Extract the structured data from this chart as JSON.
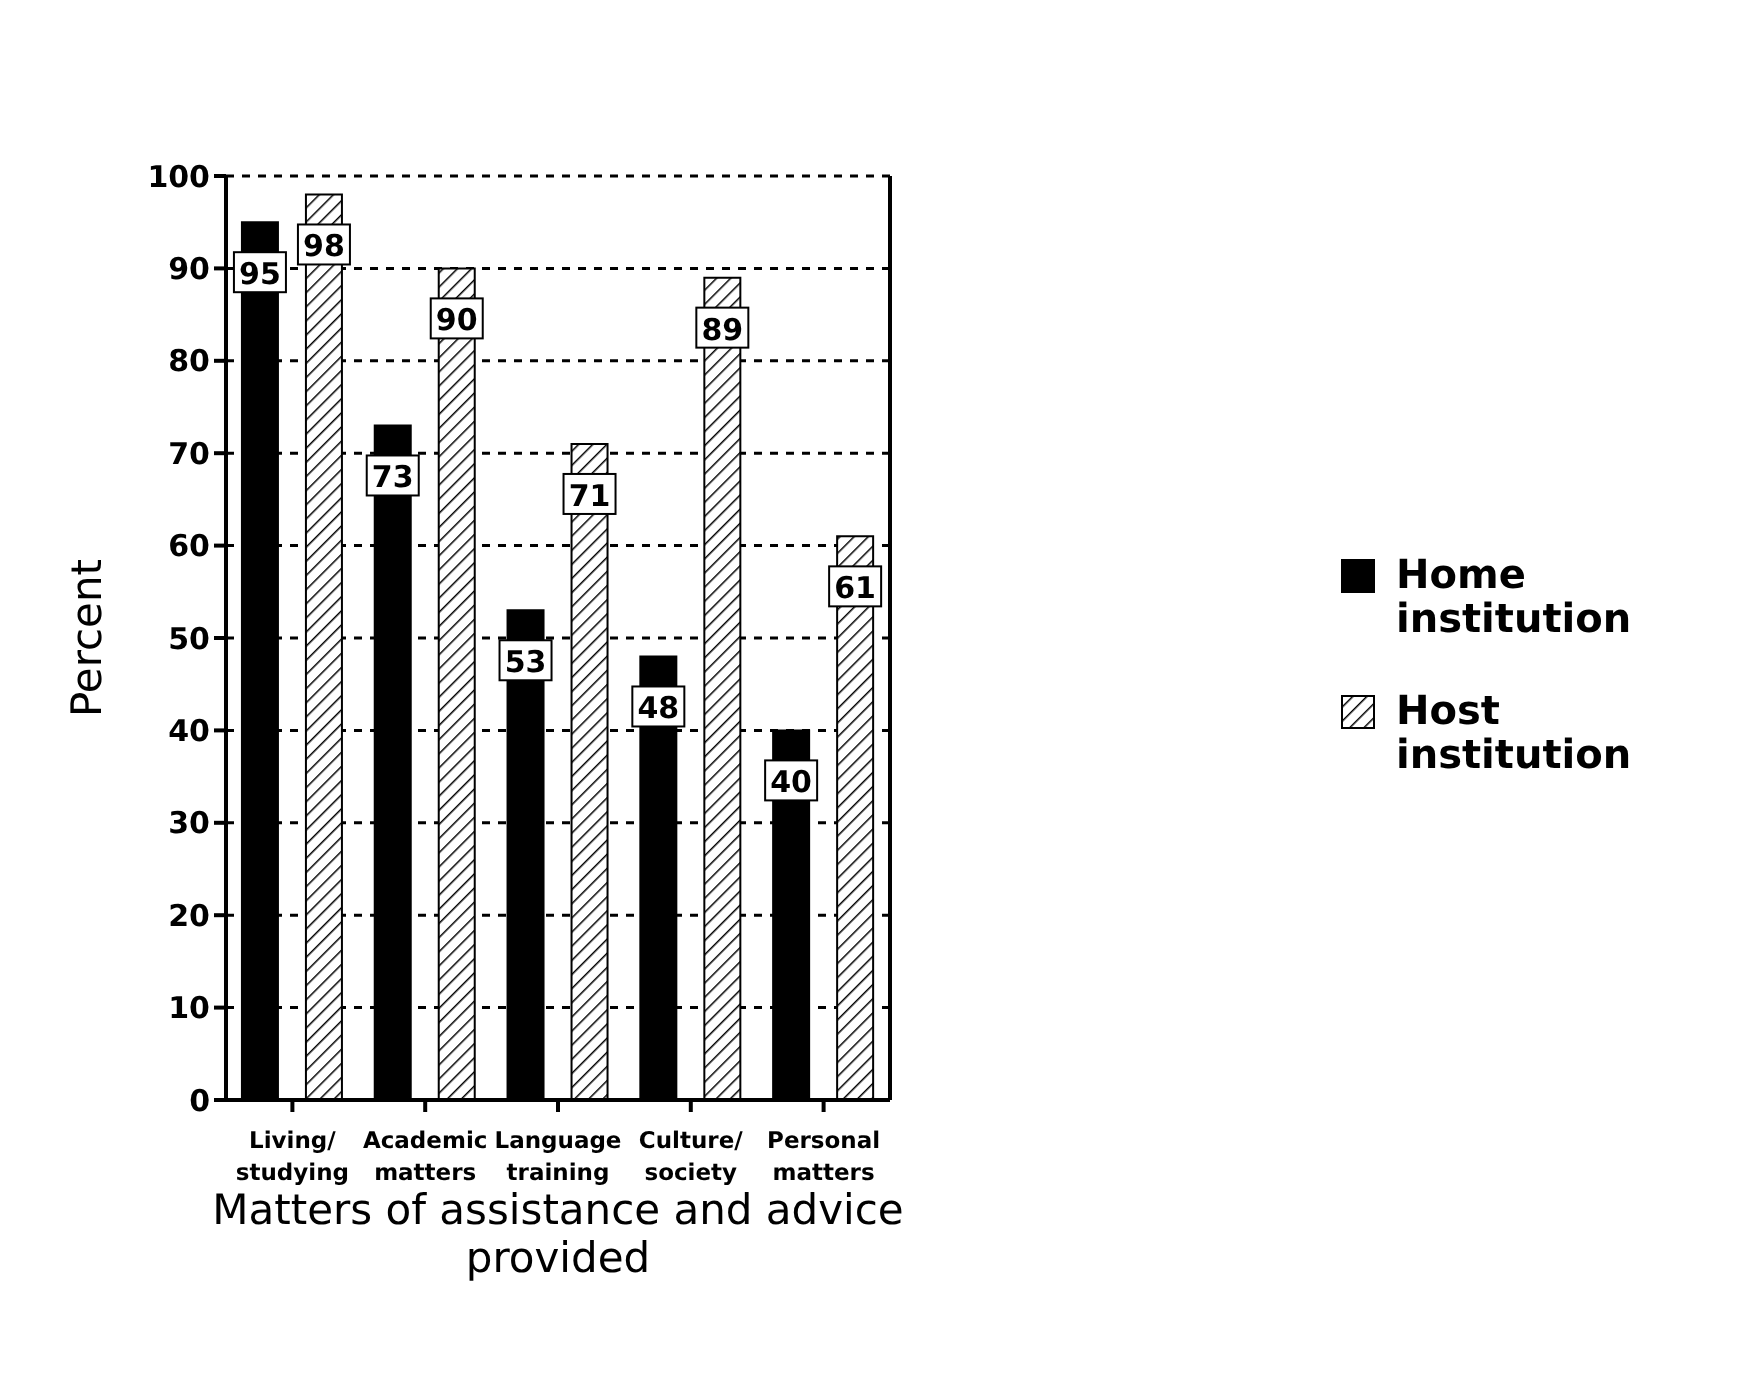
{
  "chart_data": {
    "type": "bar",
    "xlabel": "Matters of assistance and advice provided",
    "ylabel": "Percent",
    "categories": [
      "Living/ studying",
      "Academic matters",
      "Language training",
      "Culture/ society",
      "Personal matters"
    ],
    "series": [
      {
        "name": "Home institution",
        "color": "#000000",
        "values": [
          95,
          73,
          53,
          48,
          40
        ]
      },
      {
        "name": "Host institution",
        "color": "#000000",
        "values": [
          98,
          90,
          71,
          89,
          61
        ]
      }
    ],
    "ylim": [
      0,
      100
    ],
    "yticks": [
      0,
      10,
      20,
      30,
      40,
      50,
      60,
      70,
      80,
      90,
      100
    ],
    "grid": "y",
    "legend": "right",
    "data_labels": true
  }
}
